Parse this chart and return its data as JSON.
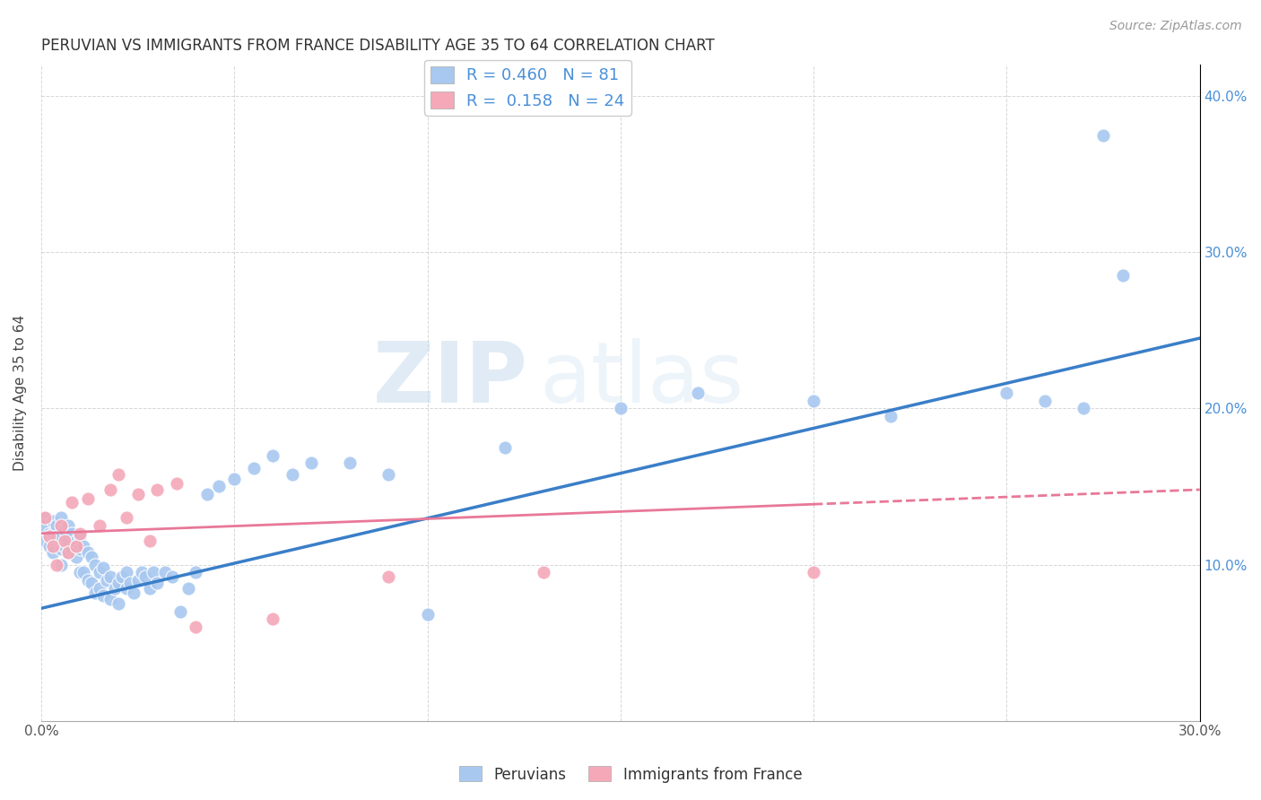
{
  "title": "PERUVIAN VS IMMIGRANTS FROM FRANCE DISABILITY AGE 35 TO 64 CORRELATION CHART",
  "source": "Source: ZipAtlas.com",
  "ylabel": "Disability Age 35 to 64",
  "xlim": [
    0.0,
    0.3
  ],
  "ylim": [
    0.0,
    0.42
  ],
  "xticks": [
    0.0,
    0.05,
    0.1,
    0.15,
    0.2,
    0.25,
    0.3
  ],
  "yticks": [
    0.0,
    0.1,
    0.2,
    0.3,
    0.4
  ],
  "xtick_labels": [
    "0.0%",
    "",
    "",
    "",
    "",
    "",
    "30.0%"
  ],
  "ytick_labels_right": [
    "",
    "10.0%",
    "20.0%",
    "30.0%",
    "40.0%"
  ],
  "blue_R": 0.46,
  "blue_N": 81,
  "pink_R": 0.158,
  "pink_N": 24,
  "blue_color": "#A8C8F0",
  "pink_color": "#F4A8B8",
  "blue_line_color": "#3A7EC8",
  "pink_line_color": "#E87898",
  "watermark_zip": "ZIP",
  "watermark_atlas": "atlas",
  "legend_label_blue": "Peruvians",
  "legend_label_pink": "Immigrants from France",
  "blue_scatter_x": [
    0.001,
    0.001,
    0.001,
    0.002,
    0.002,
    0.002,
    0.003,
    0.003,
    0.003,
    0.004,
    0.004,
    0.005,
    0.005,
    0.005,
    0.005,
    0.006,
    0.006,
    0.007,
    0.007,
    0.007,
    0.008,
    0.008,
    0.009,
    0.009,
    0.01,
    0.01,
    0.01,
    0.011,
    0.011,
    0.012,
    0.012,
    0.013,
    0.013,
    0.014,
    0.014,
    0.015,
    0.015,
    0.016,
    0.016,
    0.017,
    0.018,
    0.018,
    0.019,
    0.02,
    0.02,
    0.021,
    0.022,
    0.022,
    0.023,
    0.024,
    0.025,
    0.026,
    0.027,
    0.028,
    0.029,
    0.03,
    0.032,
    0.034,
    0.036,
    0.038,
    0.04,
    0.043,
    0.046,
    0.05,
    0.055,
    0.06,
    0.065,
    0.07,
    0.08,
    0.09,
    0.1,
    0.12,
    0.15,
    0.17,
    0.2,
    0.22,
    0.25,
    0.26,
    0.27,
    0.275,
    0.28
  ],
  "blue_scatter_y": [
    0.13,
    0.125,
    0.115,
    0.12,
    0.118,
    0.112,
    0.128,
    0.12,
    0.108,
    0.125,
    0.118,
    0.13,
    0.118,
    0.11,
    0.1,
    0.122,
    0.112,
    0.125,
    0.115,
    0.108,
    0.12,
    0.11,
    0.115,
    0.105,
    0.118,
    0.11,
    0.095,
    0.112,
    0.095,
    0.108,
    0.09,
    0.105,
    0.088,
    0.1,
    0.082,
    0.095,
    0.085,
    0.098,
    0.08,
    0.09,
    0.092,
    0.078,
    0.085,
    0.088,
    0.075,
    0.092,
    0.085,
    0.095,
    0.088,
    0.082,
    0.09,
    0.095,
    0.092,
    0.085,
    0.095,
    0.088,
    0.095,
    0.092,
    0.07,
    0.085,
    0.095,
    0.145,
    0.15,
    0.155,
    0.162,
    0.17,
    0.158,
    0.165,
    0.165,
    0.158,
    0.068,
    0.175,
    0.2,
    0.21,
    0.205,
    0.195,
    0.21,
    0.205,
    0.2,
    0.375,
    0.285
  ],
  "pink_scatter_x": [
    0.001,
    0.002,
    0.003,
    0.004,
    0.005,
    0.006,
    0.007,
    0.008,
    0.009,
    0.01,
    0.012,
    0.015,
    0.018,
    0.02,
    0.022,
    0.025,
    0.028,
    0.03,
    0.035,
    0.04,
    0.06,
    0.09,
    0.13,
    0.2
  ],
  "pink_scatter_y": [
    0.13,
    0.118,
    0.112,
    0.1,
    0.125,
    0.115,
    0.108,
    0.14,
    0.112,
    0.12,
    0.142,
    0.125,
    0.148,
    0.158,
    0.13,
    0.145,
    0.115,
    0.148,
    0.152,
    0.06,
    0.065,
    0.092,
    0.095,
    0.095
  ]
}
